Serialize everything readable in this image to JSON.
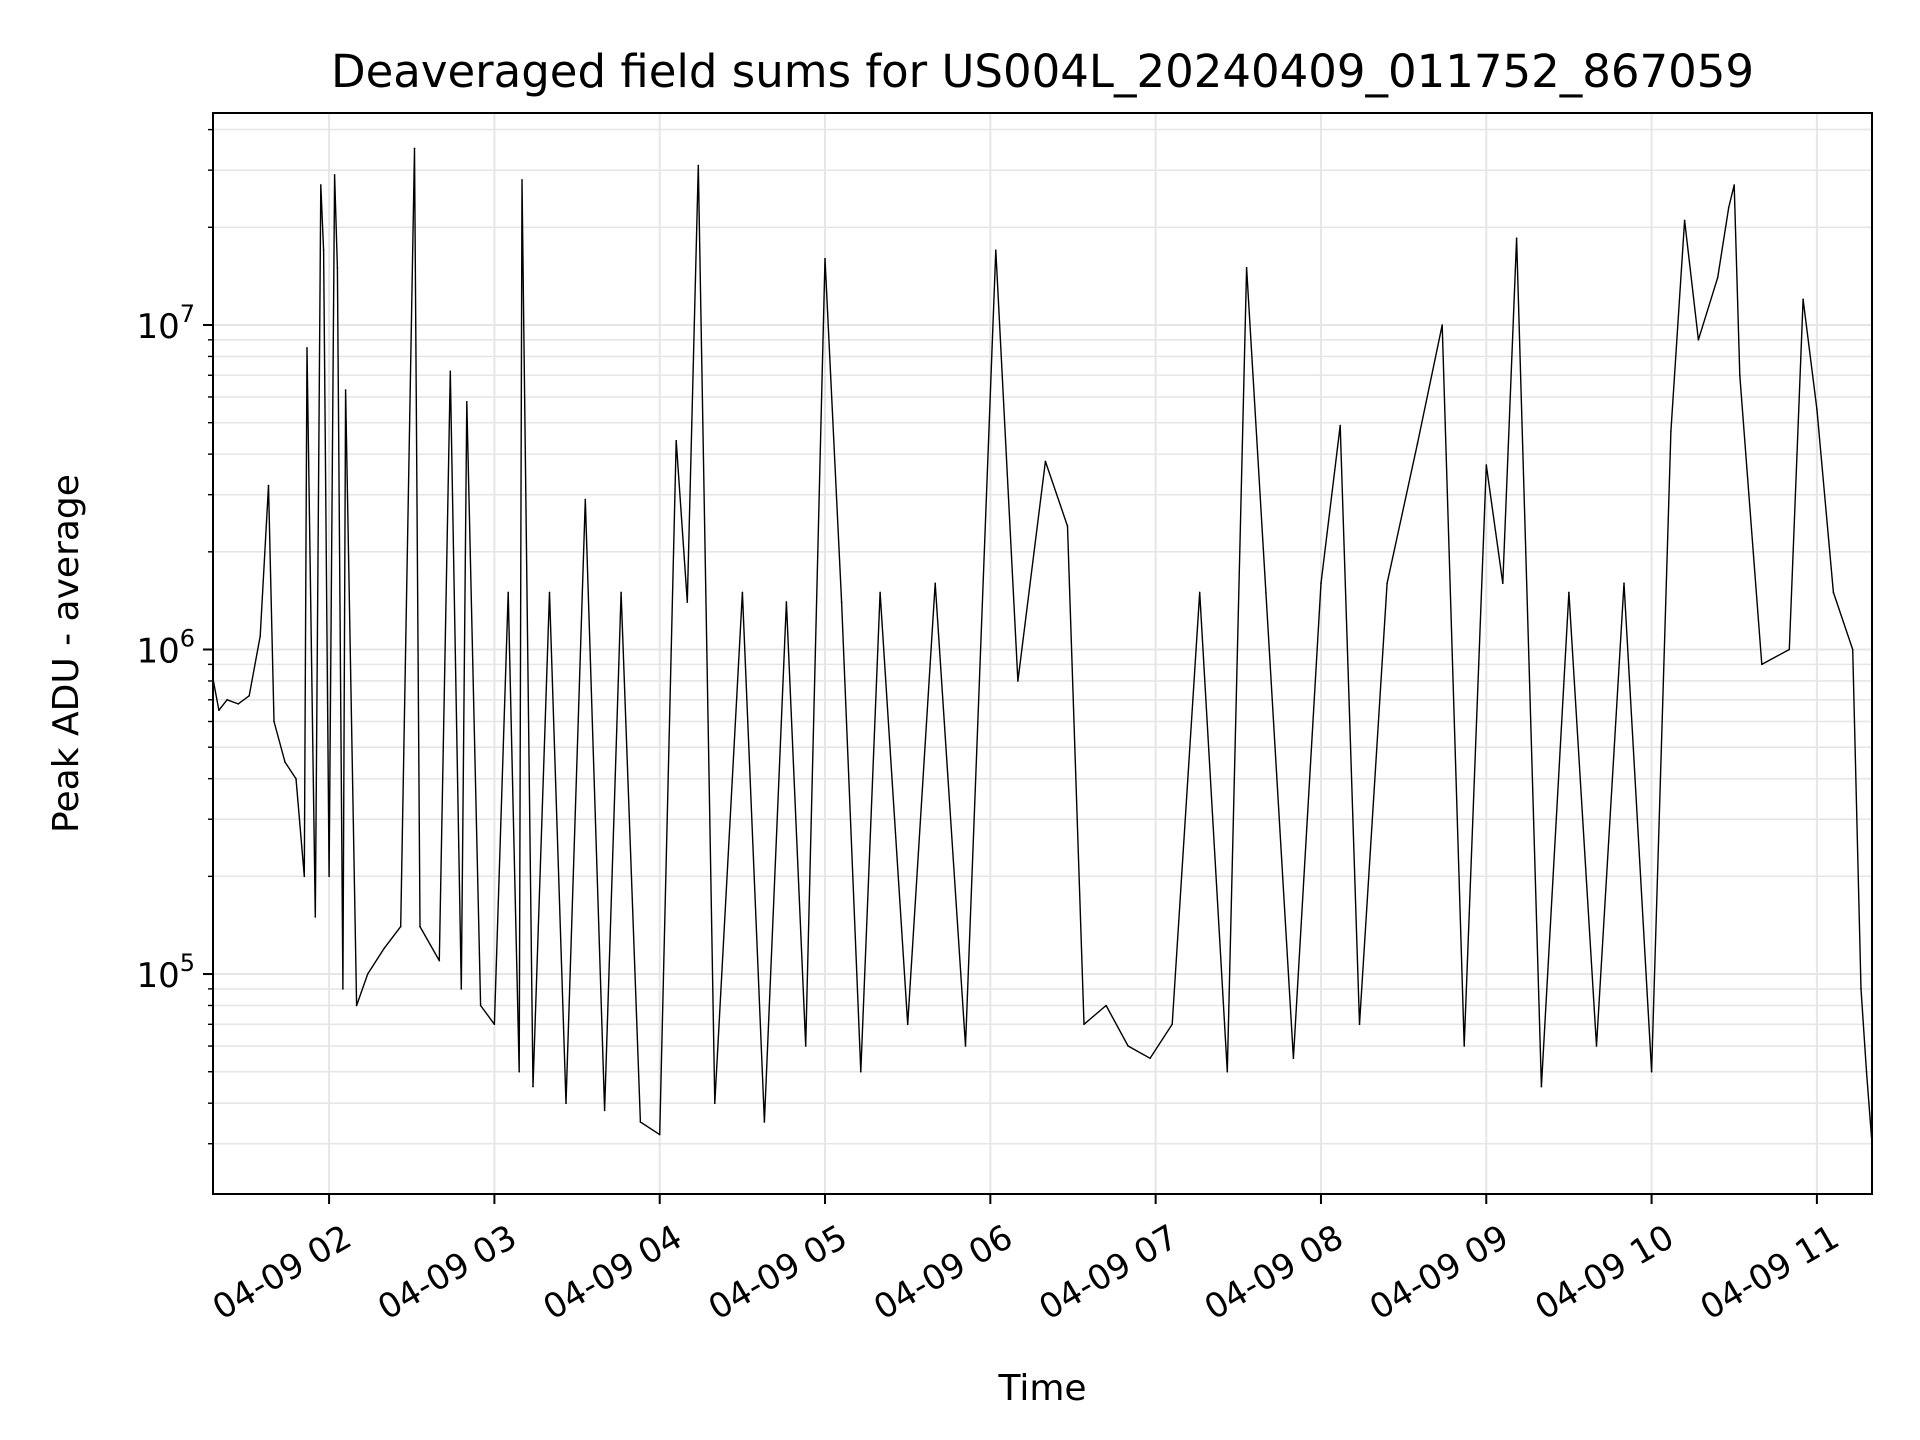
{
  "chart_data": {
    "type": "line",
    "title": "Deaveraged field sums for US004L_20240409_011752_867059",
    "xlabel": "Time",
    "ylabel": "Peak ADU - average",
    "x_scale": "time",
    "y_scale": "log",
    "xlim": [
      "2024-04-09 01:17:52",
      "2024-04-09 11:20:00"
    ],
    "ylim": [
      21000,
      45000000
    ],
    "grid": true,
    "legend": "none",
    "line_color": "#000000",
    "grid_color": "#e6e6e6",
    "x_tick_labels": [
      {
        "time": "2024-04-09 02:00",
        "label": "04-09 02"
      },
      {
        "time": "2024-04-09 03:00",
        "label": "04-09 03"
      },
      {
        "time": "2024-04-09 04:00",
        "label": "04-09 04"
      },
      {
        "time": "2024-04-09 05:00",
        "label": "04-09 05"
      },
      {
        "time": "2024-04-09 06:00",
        "label": "04-09 06"
      },
      {
        "time": "2024-04-09 07:00",
        "label": "04-09 07"
      },
      {
        "time": "2024-04-09 08:00",
        "label": "04-09 08"
      },
      {
        "time": "2024-04-09 09:00",
        "label": "04-09 09"
      },
      {
        "time": "2024-04-09 10:00",
        "label": "04-09 10"
      },
      {
        "time": "2024-04-09 11:00",
        "label": "04-09 11"
      }
    ],
    "y_tick_labels": [
      {
        "value": 100000,
        "base": "10",
        "exp": "5"
      },
      {
        "value": 1000000,
        "base": "10",
        "exp": "6"
      },
      {
        "value": 10000000,
        "base": "10",
        "exp": "7"
      }
    ],
    "series": [
      {
        "name": "",
        "points": [
          [
            "2024-04-09 01:18",
            800000
          ],
          [
            "2024-04-09 01:20",
            650000
          ],
          [
            "2024-04-09 01:23",
            700000
          ],
          [
            "2024-04-09 01:27",
            680000
          ],
          [
            "2024-04-09 01:31",
            720000
          ],
          [
            "2024-04-09 01:35",
            1100000
          ],
          [
            "2024-04-09 01:38",
            3200000
          ],
          [
            "2024-04-09 01:40",
            600000
          ],
          [
            "2024-04-09 01:44",
            450000
          ],
          [
            "2024-04-09 01:48",
            400000
          ],
          [
            "2024-04-09 01:51",
            200000
          ],
          [
            "2024-04-09 01:52",
            8500000
          ],
          [
            "2024-04-09 01:55",
            150000
          ],
          [
            "2024-04-09 01:57",
            27000000
          ],
          [
            "2024-04-09 01:58",
            17000000
          ],
          [
            "2024-04-09 02:00",
            200000
          ],
          [
            "2024-04-09 02:02",
            29000000
          ],
          [
            "2024-04-09 02:03",
            15000000
          ],
          [
            "2024-04-09 02:05",
            90000
          ],
          [
            "2024-04-09 02:06",
            6300000
          ],
          [
            "2024-04-09 02:10",
            80000
          ],
          [
            "2024-04-09 02:14",
            100000
          ],
          [
            "2024-04-09 02:20",
            120000
          ],
          [
            "2024-04-09 02:26",
            140000
          ],
          [
            "2024-04-09 02:31",
            35000000
          ],
          [
            "2024-04-09 02:33",
            140000
          ],
          [
            "2024-04-09 02:40",
            110000
          ],
          [
            "2024-04-09 02:44",
            7200000
          ],
          [
            "2024-04-09 02:48",
            90000
          ],
          [
            "2024-04-09 02:50",
            5800000
          ],
          [
            "2024-04-09 02:55",
            80000
          ],
          [
            "2024-04-09 03:00",
            70000
          ],
          [
            "2024-04-09 03:05",
            1500000
          ],
          [
            "2024-04-09 03:09",
            50000
          ],
          [
            "2024-04-09 03:10",
            28000000
          ],
          [
            "2024-04-09 03:14",
            45000
          ],
          [
            "2024-04-09 03:20",
            1500000
          ],
          [
            "2024-04-09 03:26",
            40000
          ],
          [
            "2024-04-09 03:33",
            2900000
          ],
          [
            "2024-04-09 03:40",
            38000
          ],
          [
            "2024-04-09 03:46",
            1500000
          ],
          [
            "2024-04-09 03:53",
            35000
          ],
          [
            "2024-04-09 04:00",
            32000
          ],
          [
            "2024-04-09 04:06",
            4400000
          ],
          [
            "2024-04-09 04:10",
            1400000
          ],
          [
            "2024-04-09 04:14",
            31000000
          ],
          [
            "2024-04-09 04:20",
            40000
          ],
          [
            "2024-04-09 04:30",
            1500000
          ],
          [
            "2024-04-09 04:38",
            35000
          ],
          [
            "2024-04-09 04:46",
            1400000
          ],
          [
            "2024-04-09 04:53",
            60000
          ],
          [
            "2024-04-09 05:00",
            16000000
          ],
          [
            "2024-04-09 05:06",
            1400000
          ],
          [
            "2024-04-09 05:13",
            50000
          ],
          [
            "2024-04-09 05:20",
            1500000
          ],
          [
            "2024-04-09 05:30",
            70000
          ],
          [
            "2024-04-09 05:40",
            1600000
          ],
          [
            "2024-04-09 05:51",
            60000
          ],
          [
            "2024-04-09 06:02",
            17000000
          ],
          [
            "2024-04-09 06:10",
            800000
          ],
          [
            "2024-04-09 06:20",
            3800000
          ],
          [
            "2024-04-09 06:28",
            2400000
          ],
          [
            "2024-04-09 06:34",
            70000
          ],
          [
            "2024-04-09 06:42",
            80000
          ],
          [
            "2024-04-09 06:50",
            60000
          ],
          [
            "2024-04-09 06:58",
            55000
          ],
          [
            "2024-04-09 07:06",
            70000
          ],
          [
            "2024-04-09 07:16",
            1500000
          ],
          [
            "2024-04-09 07:26",
            50000
          ],
          [
            "2024-04-09 07:33",
            15000000
          ],
          [
            "2024-04-09 07:40",
            1500000
          ],
          [
            "2024-04-09 07:50",
            55000
          ],
          [
            "2024-04-09 08:00",
            1600000
          ],
          [
            "2024-04-09 08:07",
            4900000
          ],
          [
            "2024-04-09 08:14",
            70000
          ],
          [
            "2024-04-09 08:24",
            1600000
          ],
          [
            "2024-04-09 08:35",
            4300000
          ],
          [
            "2024-04-09 08:44",
            10000000
          ],
          [
            "2024-04-09 08:52",
            60000
          ],
          [
            "2024-04-09 09:00",
            3700000
          ],
          [
            "2024-04-09 09:06",
            1600000
          ],
          [
            "2024-04-09 09:11",
            18500000
          ],
          [
            "2024-04-09 09:20",
            45000
          ],
          [
            "2024-04-09 09:30",
            1500000
          ],
          [
            "2024-04-09 09:40",
            60000
          ],
          [
            "2024-04-09 09:50",
            1600000
          ],
          [
            "2024-04-09 10:00",
            50000
          ],
          [
            "2024-04-09 10:07",
            4700000
          ],
          [
            "2024-04-09 10:12",
            21000000
          ],
          [
            "2024-04-09 10:17",
            9000000
          ],
          [
            "2024-04-09 10:24",
            14000000
          ],
          [
            "2024-04-09 10:28",
            23000000
          ],
          [
            "2024-04-09 10:30",
            27000000
          ],
          [
            "2024-04-09 10:32",
            7000000
          ],
          [
            "2024-04-09 10:40",
            900000
          ],
          [
            "2024-04-09 10:50",
            1000000
          ],
          [
            "2024-04-09 10:55",
            12000000
          ],
          [
            "2024-04-09 11:00",
            5500000
          ],
          [
            "2024-04-09 11:06",
            1500000
          ],
          [
            "2024-04-09 11:13",
            1000000
          ],
          [
            "2024-04-09 11:16",
            90000
          ],
          [
            "2024-04-09 11:18",
            50000
          ],
          [
            "2024-04-09 11:20",
            30000
          ]
        ]
      }
    ]
  }
}
